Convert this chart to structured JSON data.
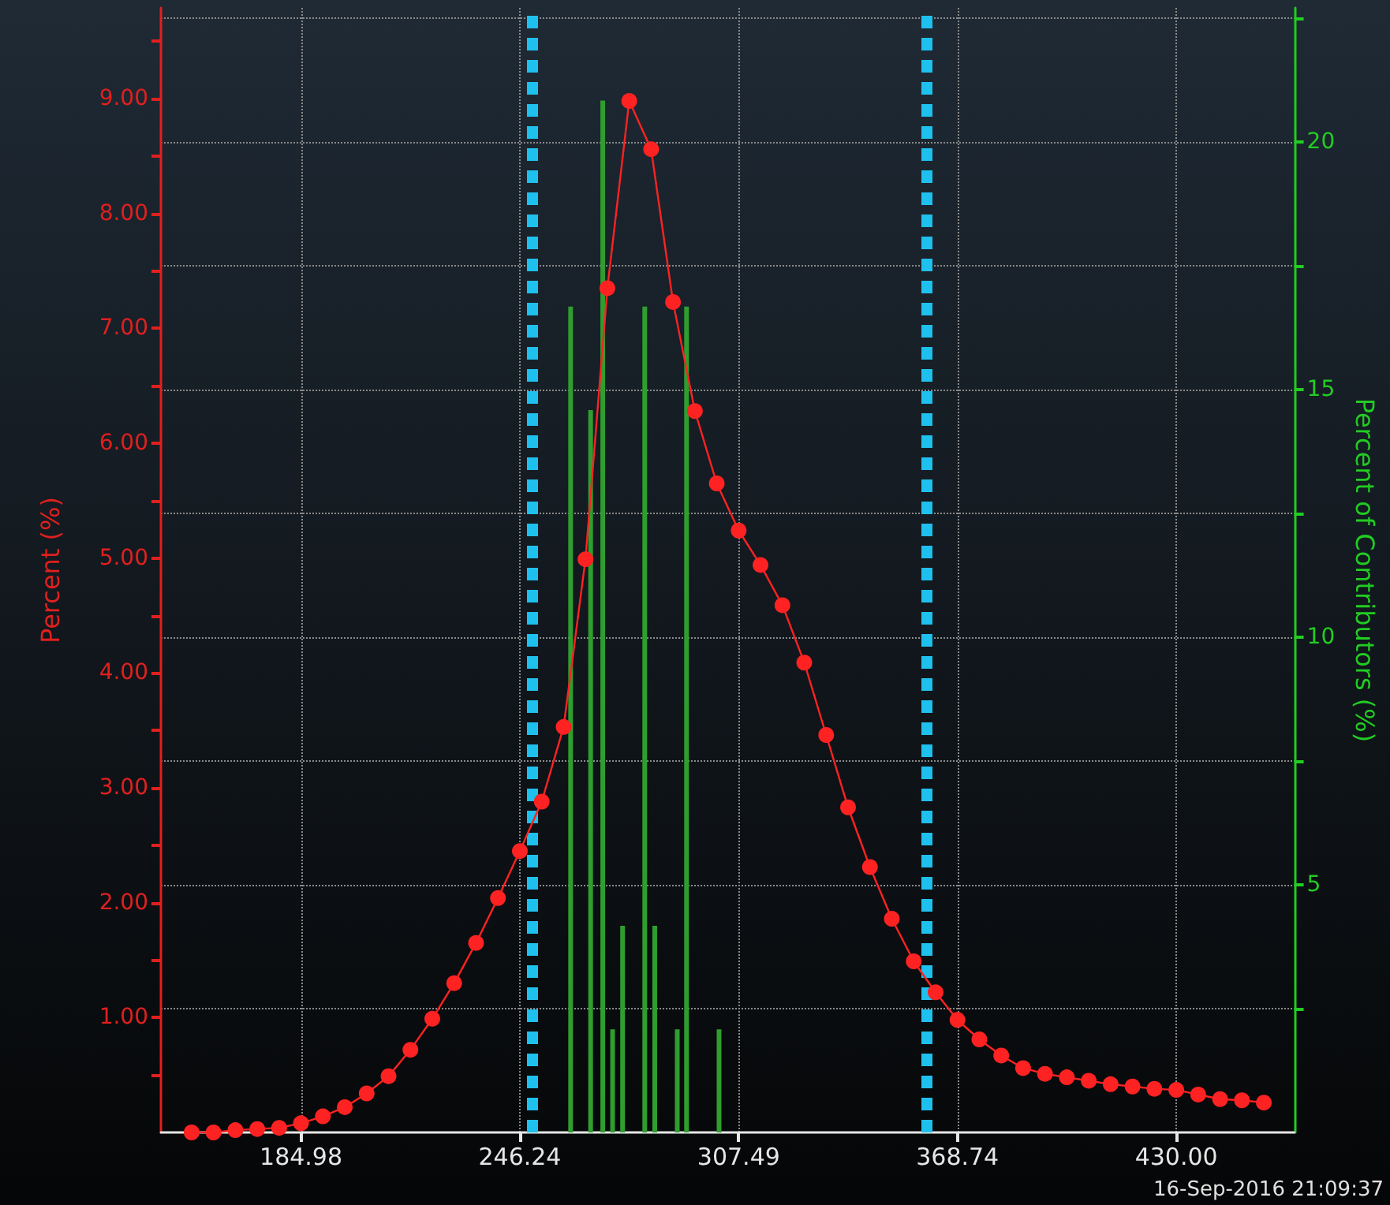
{
  "chart_data": {
    "type": "line",
    "ylabel": "Percent (%)",
    "y2label": "Percent of Contributors (%)",
    "annotations": [
      "16-Sep-2016 21:09:37"
    ],
    "xlim": [
      145.77,
      463.0
    ],
    "xticks": [
      184.98,
      246.24,
      307.49,
      368.74,
      {
        "value": 430,
        "label": "430.00"
      }
    ],
    "ylim": [
      0,
      9.79
    ],
    "yticks": [
      {
        "value": 0.5,
        "label": null
      },
      {
        "value": 1,
        "label": "1.00"
      },
      {
        "value": 1.5,
        "label": null
      },
      {
        "value": 2,
        "label": "2.00"
      },
      {
        "value": 2.5,
        "label": null
      },
      {
        "value": 3,
        "label": "3.00"
      },
      {
        "value": 3.5,
        "label": null
      },
      {
        "value": 4,
        "label": "4.00"
      },
      {
        "value": 4.5,
        "label": null
      },
      {
        "value": 5,
        "label": "5.00"
      },
      {
        "value": 5.5,
        "label": null
      },
      {
        "value": 6,
        "label": "6.00"
      },
      {
        "value": 6.5,
        "label": null
      },
      {
        "value": 7,
        "label": "7.00"
      },
      {
        "value": 7.5,
        "label": null
      },
      {
        "value": 8,
        "label": "8.00"
      },
      {
        "value": 8.5,
        "label": null
      },
      {
        "value": 9,
        "label": "9.00"
      },
      {
        "value": 9.5,
        "label": null
      }
    ],
    "y2lim": [
      0,
      22.7
    ],
    "y2ticks": [
      {
        "value": 2.5,
        "label": null
      },
      5,
      {
        "value": 7.5,
        "label": null
      },
      10,
      {
        "value": 12.5,
        "label": null
      },
      15,
      {
        "value": 17.5,
        "label": null
      },
      20,
      {
        "value": 22.5,
        "label": null
      }
    ],
    "grid": true,
    "marker": "circle",
    "line_style": "solid",
    "ref_lines": [
      {
        "axis": "x",
        "value": 249.75,
        "color": "#1ec0ee",
        "line_style": "dashed"
      },
      {
        "axis": "x",
        "value": 360.3,
        "color": "#1ec0ee",
        "line_style": "dashed"
      }
    ],
    "series": [
      {
        "color": "#ff2222",
        "x": [
          154.36,
          160.48,
          166.61,
          172.73,
          178.86,
          184.98,
          191.11,
          197.23,
          203.36,
          209.48,
          215.61,
          221.73,
          227.86,
          233.98,
          240.11,
          246.24,
          252.36,
          258.49,
          264.61,
          270.74,
          276.86,
          282.99,
          289.11,
          295.24,
          301.36,
          307.49,
          313.61,
          319.74,
          325.86,
          331.99,
          338.11,
          344.24,
          350.36,
          356.49,
          362.61,
          368.74,
          374.86,
          380.99,
          387.11,
          393.24,
          399.36,
          405.49,
          411.61,
          417.74,
          423.86,
          430.0,
          436.12,
          442.25,
          448.37,
          454.5
        ],
        "values": [
          0.0,
          0.0,
          0.02,
          0.03,
          0.04,
          0.08,
          0.14,
          0.22,
          0.34,
          0.49,
          0.72,
          0.99,
          1.3,
          1.65,
          2.04,
          2.45,
          2.88,
          3.53,
          4.99,
          7.35,
          8.98,
          8.56,
          7.23,
          6.28,
          5.65,
          5.24,
          4.94,
          4.59,
          4.09,
          3.46,
          2.83,
          2.31,
          1.86,
          1.49,
          1.22,
          0.98,
          0.81,
          0.67,
          0.56,
          0.51,
          0.48,
          0.45,
          0.42,
          0.4,
          0.38,
          0.37,
          0.33,
          0.29,
          0.28,
          0.26
        ]
      },
      {
        "type": "bar",
        "axis": "y2",
        "color": "#2f9e2f",
        "x": [
          260.45,
          266.05,
          269.45,
          272.2,
          275.0,
          281.2,
          284.0,
          290.3,
          292.9,
          302.0
        ],
        "values": [
          16.67,
          14.58,
          20.83,
          2.08,
          4.17,
          16.67,
          4.17,
          2.08,
          16.67,
          2.08
        ]
      }
    ]
  }
}
